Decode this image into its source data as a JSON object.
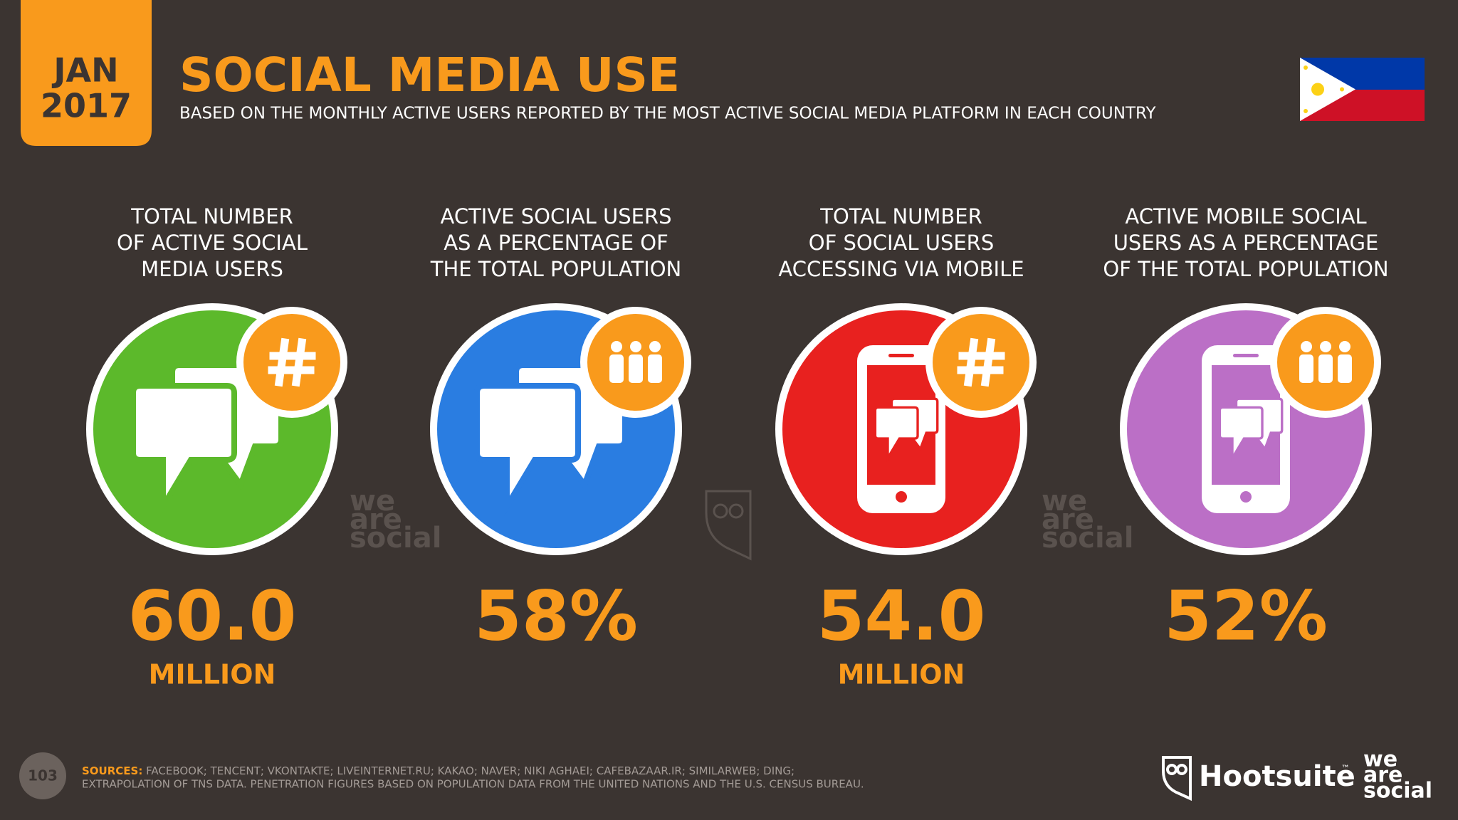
{
  "header": {
    "date_month": "JAN",
    "date_year": "2017",
    "title": "SOCIAL MEDIA USE",
    "subtitle": "BASED ON THE MONTHLY ACTIVE USERS REPORTED BY THE MOST ACTIVE SOCIAL MEDIA PLATFORM IN EACH COUNTRY"
  },
  "stats": [
    {
      "label": [
        "TOTAL NUMBER",
        "OF ACTIVE SOCIAL",
        "MEDIA USERS"
      ],
      "value": "60.0",
      "unit": "MILLION",
      "color": "#5cb92b"
    },
    {
      "label": [
        "ACTIVE SOCIAL USERS",
        "AS A PERCENTAGE OF",
        "THE TOTAL POPULATION"
      ],
      "value": "58%",
      "color": "#2a7de1"
    },
    {
      "label": [
        "TOTAL NUMBER",
        "OF SOCIAL USERS",
        "ACCESSING VIA MOBILE"
      ],
      "value": "54.0",
      "unit": "MILLION",
      "color": "#e8211f"
    },
    {
      "label": [
        "ACTIVE MOBILE SOCIAL",
        "USERS AS A PERCENTAGE",
        "OF THE TOTAL POPULATION"
      ],
      "value": "52%",
      "color": "#bb6fc6"
    }
  ],
  "footer": {
    "page": "103",
    "sources_label": "SOURCES:",
    "sources": "FACEBOOK; TENCENT; VKONTAKTE; LIVEINTERNET.RU; KAKAO; NAVER; NIKI AGHAEI; CAFEBAZAAR.IR; SIMILARWEB; DING;",
    "note": "EXTRAPOLATION OF TNS DATA. PENETRATION FIGURES BASED ON POPULATION DATA FROM THE UNITED NATIONS AND THE U.S. CENSUS BUREAU."
  },
  "branding": {
    "hootsuite": "Hootsuite",
    "tm": "™",
    "we_are_social": [
      "we",
      "are",
      "social"
    ]
  }
}
